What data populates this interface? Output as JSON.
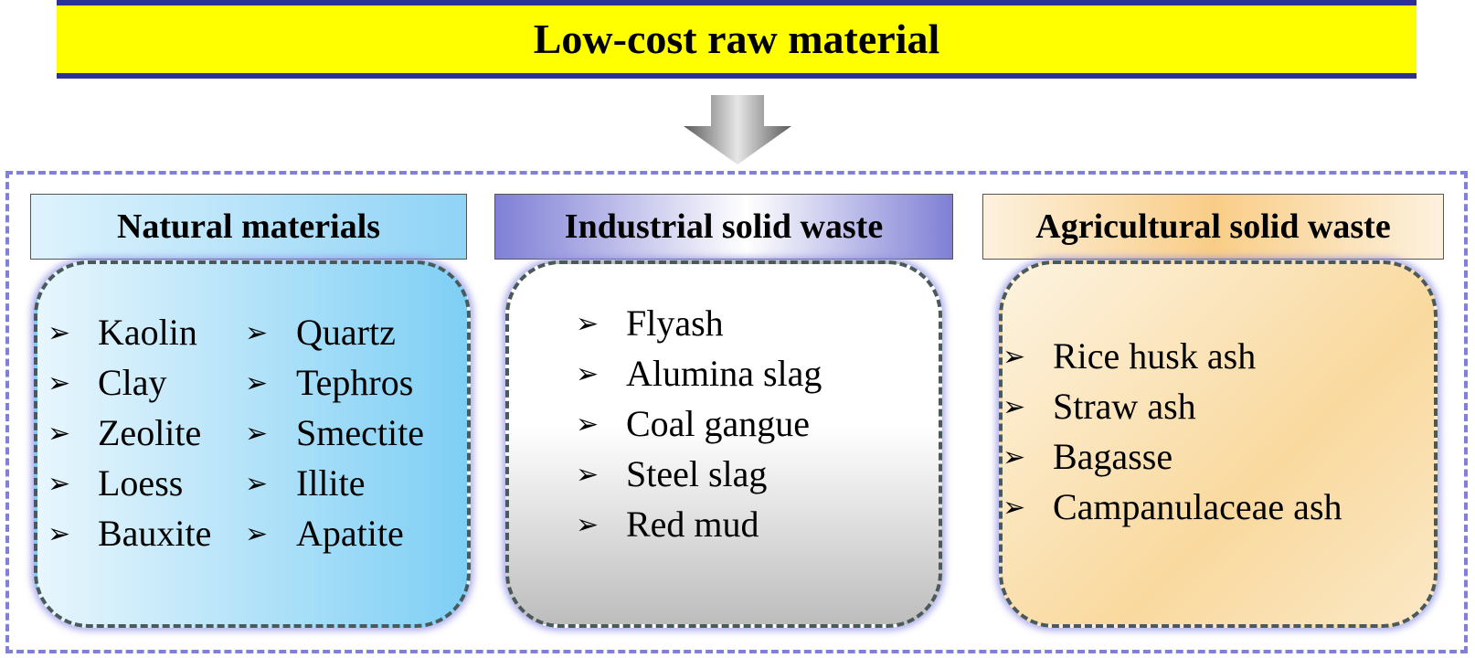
{
  "banner": {
    "title": "Low-cost raw material"
  },
  "colors": {
    "banner_bg": "#ffff00",
    "banner_border": "#2e3192",
    "frame_dash": "#8080d8",
    "natural_gradient": [
      "#dff3fd",
      "#8fd3f6"
    ],
    "industrial_gradient": [
      "#7f7fd6",
      "#ffffff"
    ],
    "agricultural_gradient": [
      "#fdf1de",
      "#f9cd87"
    ]
  },
  "bullet_glyph": "➢",
  "categories": {
    "natural": {
      "title": "Natural materials",
      "items": [
        "Kaolin",
        "Clay",
        "Zeolite",
        "Loess",
        "Bauxite",
        "Quartz",
        "Tephros",
        "Smectite",
        "Illite",
        "Apatite"
      ]
    },
    "industrial": {
      "title": "Industrial solid waste",
      "items": [
        "Flyash",
        "Alumina slag",
        "Coal gangue",
        "Steel slag",
        "Red mud"
      ]
    },
    "agricultural": {
      "title": "Agricultural solid waste",
      "items": [
        "Rice husk ash",
        "Straw ash",
        "Bagasse",
        "Campanulaceae ash"
      ]
    }
  }
}
